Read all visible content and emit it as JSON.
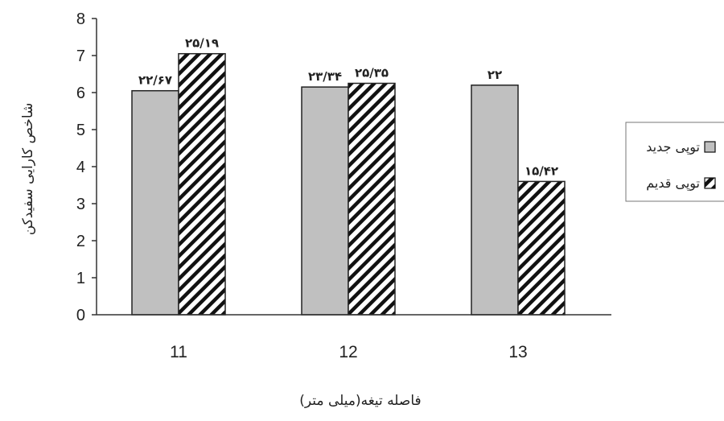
{
  "chart_data": {
    "type": "bar",
    "categories": [
      "11",
      "12",
      "13"
    ],
    "series": [
      {
        "name": "توپی جدید",
        "values": [
          6.05,
          6.15,
          6.2
        ],
        "labels": [
          "۲۲/۶۷",
          "۲۳/۳۴",
          "۲۲"
        ],
        "fill": "#c0c0c0"
      },
      {
        "name": "توپی قدیم",
        "values": [
          7.05,
          6.25,
          3.6
        ],
        "labels": [
          "۲۵/۱۹",
          "۲۵/۳۵",
          "۱۵/۴۲"
        ],
        "fill": "hatch"
      }
    ],
    "xlabel": "فاصله تیغه(میلی متر)",
    "ylabel": "شاخص کارایی سفیدکن",
    "ylim": [
      0,
      8
    ],
    "yticks": [
      "0",
      "1",
      "2",
      "3",
      "4",
      "5",
      "6",
      "7",
      "8"
    ],
    "grid": false,
    "legend_position": "right"
  }
}
